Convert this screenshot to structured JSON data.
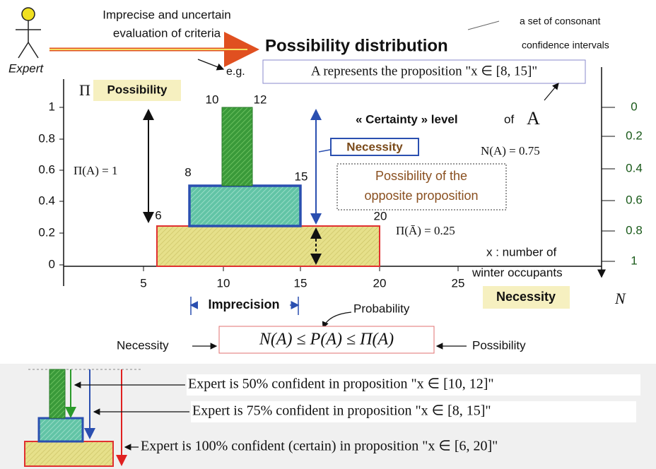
{
  "header": {
    "actor": "Expert",
    "input_line1": "Imprecise and uncertain",
    "input_line2": "evaluation of criteria",
    "title": "Possibility distribution",
    "note_line1": "a set of consonant",
    "note_line2": "confidence intervals",
    "example_prefix": "e.g.",
    "example": "A represents the proposition \"x ∈ [8, 15]\""
  },
  "left_axis": {
    "symbol": "Π",
    "name": "Possibility",
    "ticks": [
      "0",
      "0.2",
      "0.4",
      "0.6",
      "0.8",
      "1"
    ]
  },
  "right_axis": {
    "symbol": "N",
    "name": "Necessity",
    "ticks": [
      "0",
      "0.2",
      "0.4",
      "0.6",
      "0.8",
      "1"
    ]
  },
  "x_axis": {
    "label_line1": "x : number of",
    "label_line2": "winter occupants",
    "ticks": [
      "5",
      "10",
      "15",
      "20",
      "25"
    ]
  },
  "intervals": {
    "inner": [
      "10",
      "12"
    ],
    "middle": [
      "8",
      "15"
    ],
    "outer": [
      "6",
      "20"
    ]
  },
  "annotations": {
    "possibility_of_a": "Π(A) = 1",
    "certainty_prefix": "« Certainty » level",
    "certainty_of": "of",
    "certainty_a": "A",
    "necessity": "Necessity",
    "necessity_value": "N(A) = 0.75",
    "opposite_line1": "Possibility of the",
    "opposite_line2": "opposite proposition",
    "opposite_value": "Π(Ā) = 0.25",
    "imprecision": "Imprecision",
    "probability": "Probability",
    "inequality": "N(A) ≤ P(A) ≤ Π(A)",
    "ineq_left": "Necessity",
    "ineq_right": "Possibility"
  },
  "legend": [
    "Expert is 50% confident in proposition \"x ∈ [10, 12]\"",
    "Expert is 75% confident in proposition \"x ∈ [8, 15]\"",
    "Expert is 100% confident (certain) in proposition \"x ∈ [6, 20]\""
  ]
}
